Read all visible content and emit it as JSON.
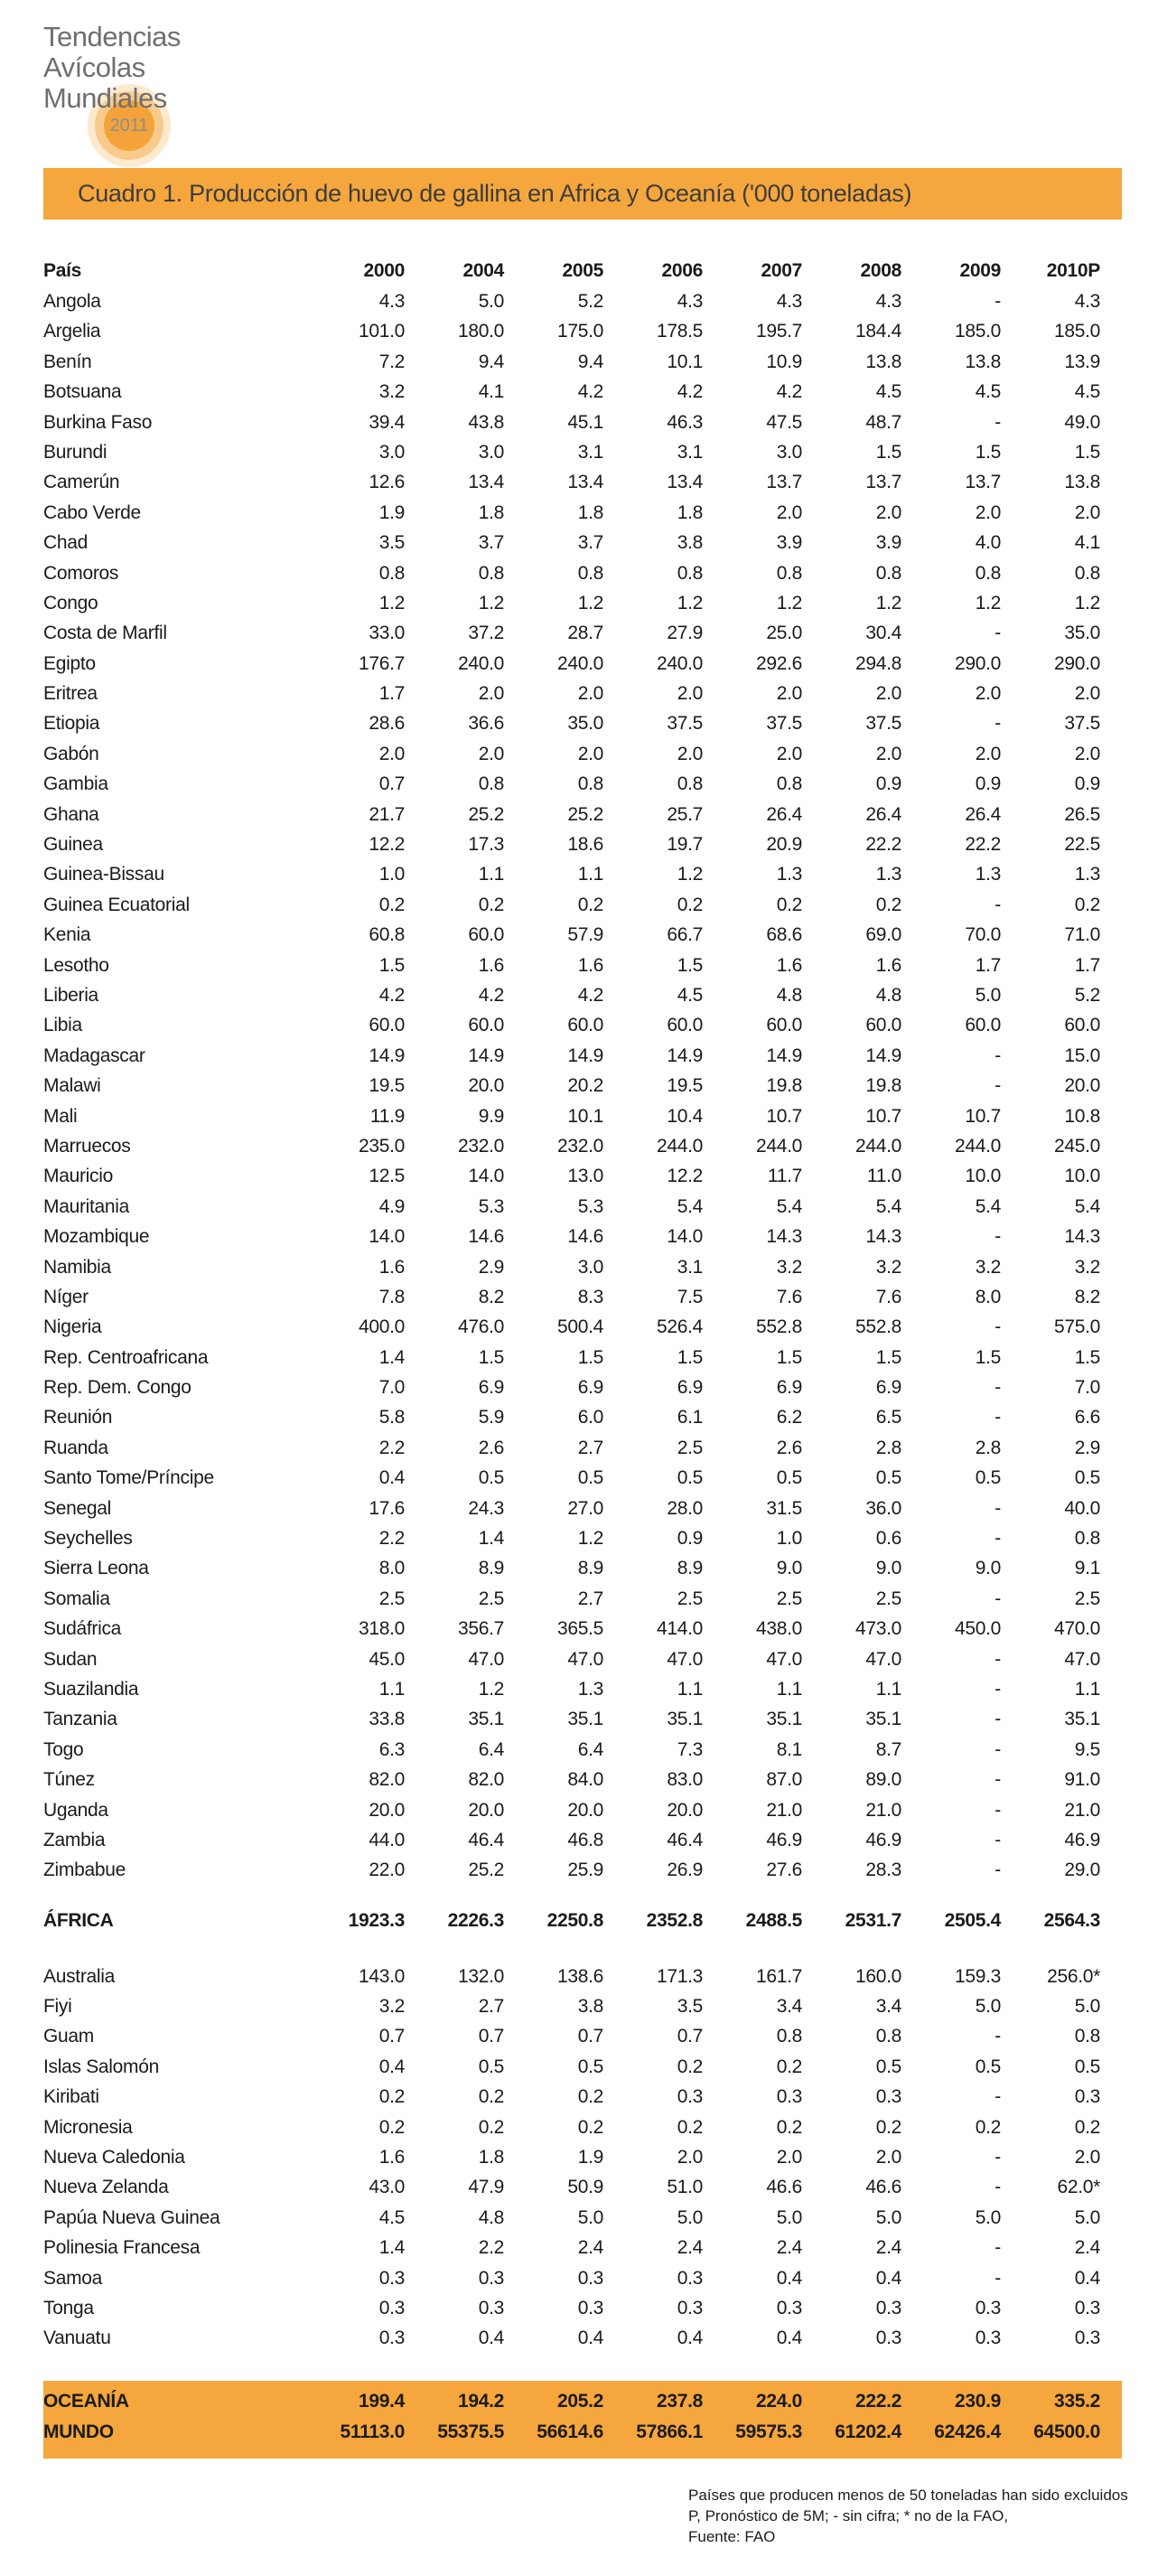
{
  "logo": {
    "lines": [
      "Tendencias",
      "Avícolas",
      "Mundiales"
    ],
    "year": "2011"
  },
  "colors": {
    "accent": "#f5a63c",
    "accent_disc": "#f3a33a",
    "text": "#1b1b1b",
    "logo_gray": "#6e6f71"
  },
  "table": {
    "title": "Cuadro 1. Producción de huevo de gallina en Africa y Oceanía ('000 toneladas)",
    "country_header": "País",
    "year_headers": [
      "2000",
      "2004",
      "2005",
      "2006",
      "2007",
      "2008",
      "2009",
      "2010P"
    ],
    "africa_rows": [
      [
        "Angola",
        "4.3",
        "5.0",
        "5.2",
        "4.3",
        "4.3",
        "4.3",
        "-",
        "4.3"
      ],
      [
        "Argelia",
        "101.0",
        "180.0",
        "175.0",
        "178.5",
        "195.7",
        "184.4",
        "185.0",
        "185.0"
      ],
      [
        "Benín",
        "7.2",
        "9.4",
        "9.4",
        "10.1",
        "10.9",
        "13.8",
        "13.8",
        "13.9"
      ],
      [
        "Botsuana",
        "3.2",
        "4.1",
        "4.2",
        "4.2",
        "4.2",
        "4.5",
        "4.5",
        "4.5"
      ],
      [
        "Burkina Faso",
        "39.4",
        "43.8",
        "45.1",
        "46.3",
        "47.5",
        "48.7",
        "-",
        "49.0"
      ],
      [
        "Burundi",
        "3.0",
        "3.0",
        "3.1",
        "3.1",
        "3.0",
        "1.5",
        "1.5",
        "1.5"
      ],
      [
        "Camerún",
        "12.6",
        "13.4",
        "13.4",
        "13.4",
        "13.7",
        "13.7",
        "13.7",
        "13.8"
      ],
      [
        "Cabo Verde",
        "1.9",
        "1.8",
        "1.8",
        "1.8",
        "2.0",
        "2.0",
        "2.0",
        "2.0"
      ],
      [
        "Chad",
        "3.5",
        "3.7",
        "3.7",
        "3.8",
        "3.9",
        "3.9",
        "4.0",
        "4.1"
      ],
      [
        "Comoros",
        "0.8",
        "0.8",
        "0.8",
        "0.8",
        "0.8",
        "0.8",
        "0.8",
        "0.8"
      ],
      [
        "Congo",
        "1.2",
        "1.2",
        "1.2",
        "1.2",
        "1.2",
        "1.2",
        "1.2",
        "1.2"
      ],
      [
        "Costa de Marfil",
        "33.0",
        "37.2",
        "28.7",
        "27.9",
        "25.0",
        "30.4",
        "-",
        "35.0"
      ],
      [
        "Egipto",
        "176.7",
        "240.0",
        "240.0",
        "240.0",
        "292.6",
        "294.8",
        "290.0",
        "290.0"
      ],
      [
        "Eritrea",
        "1.7",
        "2.0",
        "2.0",
        "2.0",
        "2.0",
        "2.0",
        "2.0",
        "2.0"
      ],
      [
        "Etiopia",
        "28.6",
        "36.6",
        "35.0",
        "37.5",
        "37.5",
        "37.5",
        "-",
        "37.5"
      ],
      [
        "Gabón",
        "2.0",
        "2.0",
        "2.0",
        "2.0",
        "2.0",
        "2.0",
        "2.0",
        "2.0"
      ],
      [
        "Gambia",
        "0.7",
        "0.8",
        "0.8",
        "0.8",
        "0.8",
        "0.9",
        "0.9",
        "0.9"
      ],
      [
        "Ghana",
        "21.7",
        "25.2",
        "25.2",
        "25.7",
        "26.4",
        "26.4",
        "26.4",
        "26.5"
      ],
      [
        "Guinea",
        "12.2",
        "17.3",
        "18.6",
        "19.7",
        "20.9",
        "22.2",
        "22.2",
        "22.5"
      ],
      [
        "Guinea-Bissau",
        "1.0",
        "1.1",
        "1.1",
        "1.2",
        "1.3",
        "1.3",
        "1.3",
        "1.3"
      ],
      [
        "Guinea Ecuatorial",
        "0.2",
        "0.2",
        "0.2",
        "0.2",
        "0.2",
        "0.2",
        "-",
        "0.2"
      ],
      [
        "Kenia",
        "60.8",
        "60.0",
        "57.9",
        "66.7",
        "68.6",
        "69.0",
        "70.0",
        "71.0"
      ],
      [
        "Lesotho",
        "1.5",
        "1.6",
        "1.6",
        "1.5",
        "1.6",
        "1.6",
        "1.7",
        "1.7"
      ],
      [
        "Liberia",
        "4.2",
        "4.2",
        "4.2",
        "4.5",
        "4.8",
        "4.8",
        "5.0",
        "5.2"
      ],
      [
        "Libia",
        "60.0",
        "60.0",
        "60.0",
        "60.0",
        "60.0",
        "60.0",
        "60.0",
        "60.0"
      ],
      [
        "Madagascar",
        "14.9",
        "14.9",
        "14.9",
        "14.9",
        "14.9",
        "14.9",
        "-",
        "15.0"
      ],
      [
        "Malawi",
        "19.5",
        "20.0",
        "20.2",
        "19.5",
        "19.8",
        "19.8",
        "-",
        "20.0"
      ],
      [
        "Mali",
        "11.9",
        "9.9",
        "10.1",
        "10.4",
        "10.7",
        "10.7",
        "10.7",
        "10.8"
      ],
      [
        "Marruecos",
        "235.0",
        "232.0",
        "232.0",
        "244.0",
        "244.0",
        "244.0",
        "244.0",
        "245.0"
      ],
      [
        "Mauricio",
        "12.5",
        "14.0",
        "13.0",
        "12.2",
        "11.7",
        "11.0",
        "10.0",
        "10.0"
      ],
      [
        "Mauritania",
        "4.9",
        "5.3",
        "5.3",
        "5.4",
        "5.4",
        "5.4",
        "5.4",
        "5.4"
      ],
      [
        "Mozambique",
        "14.0",
        "14.6",
        "14.6",
        "14.0",
        "14.3",
        "14.3",
        "-",
        "14.3"
      ],
      [
        "Namibia",
        "1.6",
        "2.9",
        "3.0",
        "3.1",
        "3.2",
        "3.2",
        "3.2",
        "3.2"
      ],
      [
        "Níger",
        "7.8",
        "8.2",
        "8.3",
        "7.5",
        "7.6",
        "7.6",
        "8.0",
        "8.2"
      ],
      [
        "Nigeria",
        "400.0",
        "476.0",
        "500.4",
        "526.4",
        "552.8",
        "552.8",
        "-",
        "575.0"
      ],
      [
        "Rep. Centroafricana",
        "1.4",
        "1.5",
        "1.5",
        "1.5",
        "1.5",
        "1.5",
        "1.5",
        "1.5"
      ],
      [
        "Rep. Dem. Congo",
        "7.0",
        "6.9",
        "6.9",
        "6.9",
        "6.9",
        "6.9",
        "-",
        "7.0"
      ],
      [
        "Reunión",
        "5.8",
        "5.9",
        "6.0",
        "6.1",
        "6.2",
        "6.5",
        "-",
        "6.6"
      ],
      [
        "Ruanda",
        "2.2",
        "2.6",
        "2.7",
        "2.5",
        "2.6",
        "2.8",
        "2.8",
        "2.9"
      ],
      [
        "Santo Tome/Príncipe",
        "0.4",
        "0.5",
        "0.5",
        "0.5",
        "0.5",
        "0.5",
        "0.5",
        "0.5"
      ],
      [
        "Senegal",
        "17.6",
        "24.3",
        "27.0",
        "28.0",
        "31.5",
        "36.0",
        "-",
        "40.0"
      ],
      [
        "Seychelles",
        "2.2",
        "1.4",
        "1.2",
        "0.9",
        "1.0",
        "0.6",
        "-",
        "0.8"
      ],
      [
        "Sierra Leona",
        "8.0",
        "8.9",
        "8.9",
        "8.9",
        "9.0",
        "9.0",
        "9.0",
        "9.1"
      ],
      [
        "Somalia",
        "2.5",
        "2.5",
        "2.7",
        "2.5",
        "2.5",
        "2.5",
        "-",
        "2.5"
      ],
      [
        "Sudáfrica",
        "318.0",
        "356.7",
        "365.5",
        "414.0",
        "438.0",
        "473.0",
        "450.0",
        "470.0"
      ],
      [
        "Sudan",
        "45.0",
        "47.0",
        "47.0",
        "47.0",
        "47.0",
        "47.0",
        "-",
        "47.0"
      ],
      [
        "Suazilandia",
        "1.1",
        "1.2",
        "1.3",
        "1.1",
        "1.1",
        "1.1",
        "-",
        "1.1"
      ],
      [
        "Tanzania",
        "33.8",
        "35.1",
        "35.1",
        "35.1",
        "35.1",
        "35.1",
        "-",
        "35.1"
      ],
      [
        "Togo",
        "6.3",
        "6.4",
        "6.4",
        "7.3",
        "8.1",
        "8.7",
        "-",
        "9.5"
      ],
      [
        "Túnez",
        "82.0",
        "82.0",
        "84.0",
        "83.0",
        "87.0",
        "89.0",
        "-",
        "91.0"
      ],
      [
        "Uganda",
        "20.0",
        "20.0",
        "20.0",
        "20.0",
        "21.0",
        "21.0",
        "-",
        "21.0"
      ],
      [
        "Zambia",
        "44.0",
        "46.4",
        "46.8",
        "46.4",
        "46.9",
        "46.9",
        "-",
        "46.9"
      ],
      [
        "Zimbabue",
        "22.0",
        "25.2",
        "25.9",
        "26.9",
        "27.6",
        "28.3",
        "-",
        "29.0"
      ]
    ],
    "africa_total": [
      "ÁFRICA",
      "1923.3",
      "2226.3",
      "2250.8",
      "2352.8",
      "2488.5",
      "2531.7",
      "2505.4",
      "2564.3"
    ],
    "oceania_rows": [
      [
        "Australia",
        "143.0",
        "132.0",
        "138.6",
        "171.3",
        "161.7",
        "160.0",
        "159.3",
        "256.0*"
      ],
      [
        "Fiyi",
        "3.2",
        "2.7",
        "3.8",
        "3.5",
        "3.4",
        "3.4",
        "5.0",
        "5.0"
      ],
      [
        "Guam",
        "0.7",
        "0.7",
        "0.7",
        "0.7",
        "0.8",
        "0.8",
        "-",
        "0.8"
      ],
      [
        "Islas Salomón",
        "0.4",
        "0.5",
        "0.5",
        "0.2",
        "0.2",
        "0.5",
        "0.5",
        "0.5"
      ],
      [
        "Kiribati",
        "0.2",
        "0.2",
        "0.2",
        "0.3",
        "0.3",
        "0.3",
        "-",
        "0.3"
      ],
      [
        "Micronesia",
        "0.2",
        "0.2",
        "0.2",
        "0.2",
        "0.2",
        "0.2",
        "0.2",
        "0.2"
      ],
      [
        "Nueva Caledonia",
        "1.6",
        "1.8",
        "1.9",
        "2.0",
        "2.0",
        "2.0",
        "-",
        "2.0"
      ],
      [
        "Nueva Zelanda",
        "43.0",
        "47.9",
        "50.9",
        "51.0",
        "46.6",
        "46.6",
        "-",
        "62.0*"
      ],
      [
        "Papúa Nueva Guinea",
        "4.5",
        "4.8",
        "5.0",
        "5.0",
        "5.0",
        "5.0",
        "5.0",
        "5.0"
      ],
      [
        "Polinesia Francesa",
        "1.4",
        "2.2",
        "2.4",
        "2.4",
        "2.4",
        "2.4",
        "-",
        "2.4"
      ],
      [
        "Samoa",
        "0.3",
        "0.3",
        "0.3",
        "0.3",
        "0.4",
        "0.4",
        "-",
        "0.4"
      ],
      [
        "Tonga",
        "0.3",
        "0.3",
        "0.3",
        "0.3",
        "0.3",
        "0.3",
        "0.3",
        "0.3"
      ],
      [
        "Vanuatu",
        "0.3",
        "0.4",
        "0.4",
        "0.4",
        "0.4",
        "0.3",
        "0.3",
        "0.3"
      ]
    ],
    "oceania_total": [
      "OCEANÍA",
      "199.4",
      "194.2",
      "205.2",
      "237.8",
      "224.0",
      "222.2",
      "230.9",
      "335.2"
    ],
    "world_total": [
      "MUNDO",
      "51113.0",
      "55375.5",
      "56614.6",
      "57866.1",
      "59575.3",
      "61202.4",
      "62426.4",
      "64500.0"
    ]
  },
  "footnotes": [
    "Países que producen menos de 50 toneladas han sido excluidos",
    "P, Pronóstico de 5M; - sin cifra; * no de la FAO,",
    "Fuente: FAO"
  ]
}
